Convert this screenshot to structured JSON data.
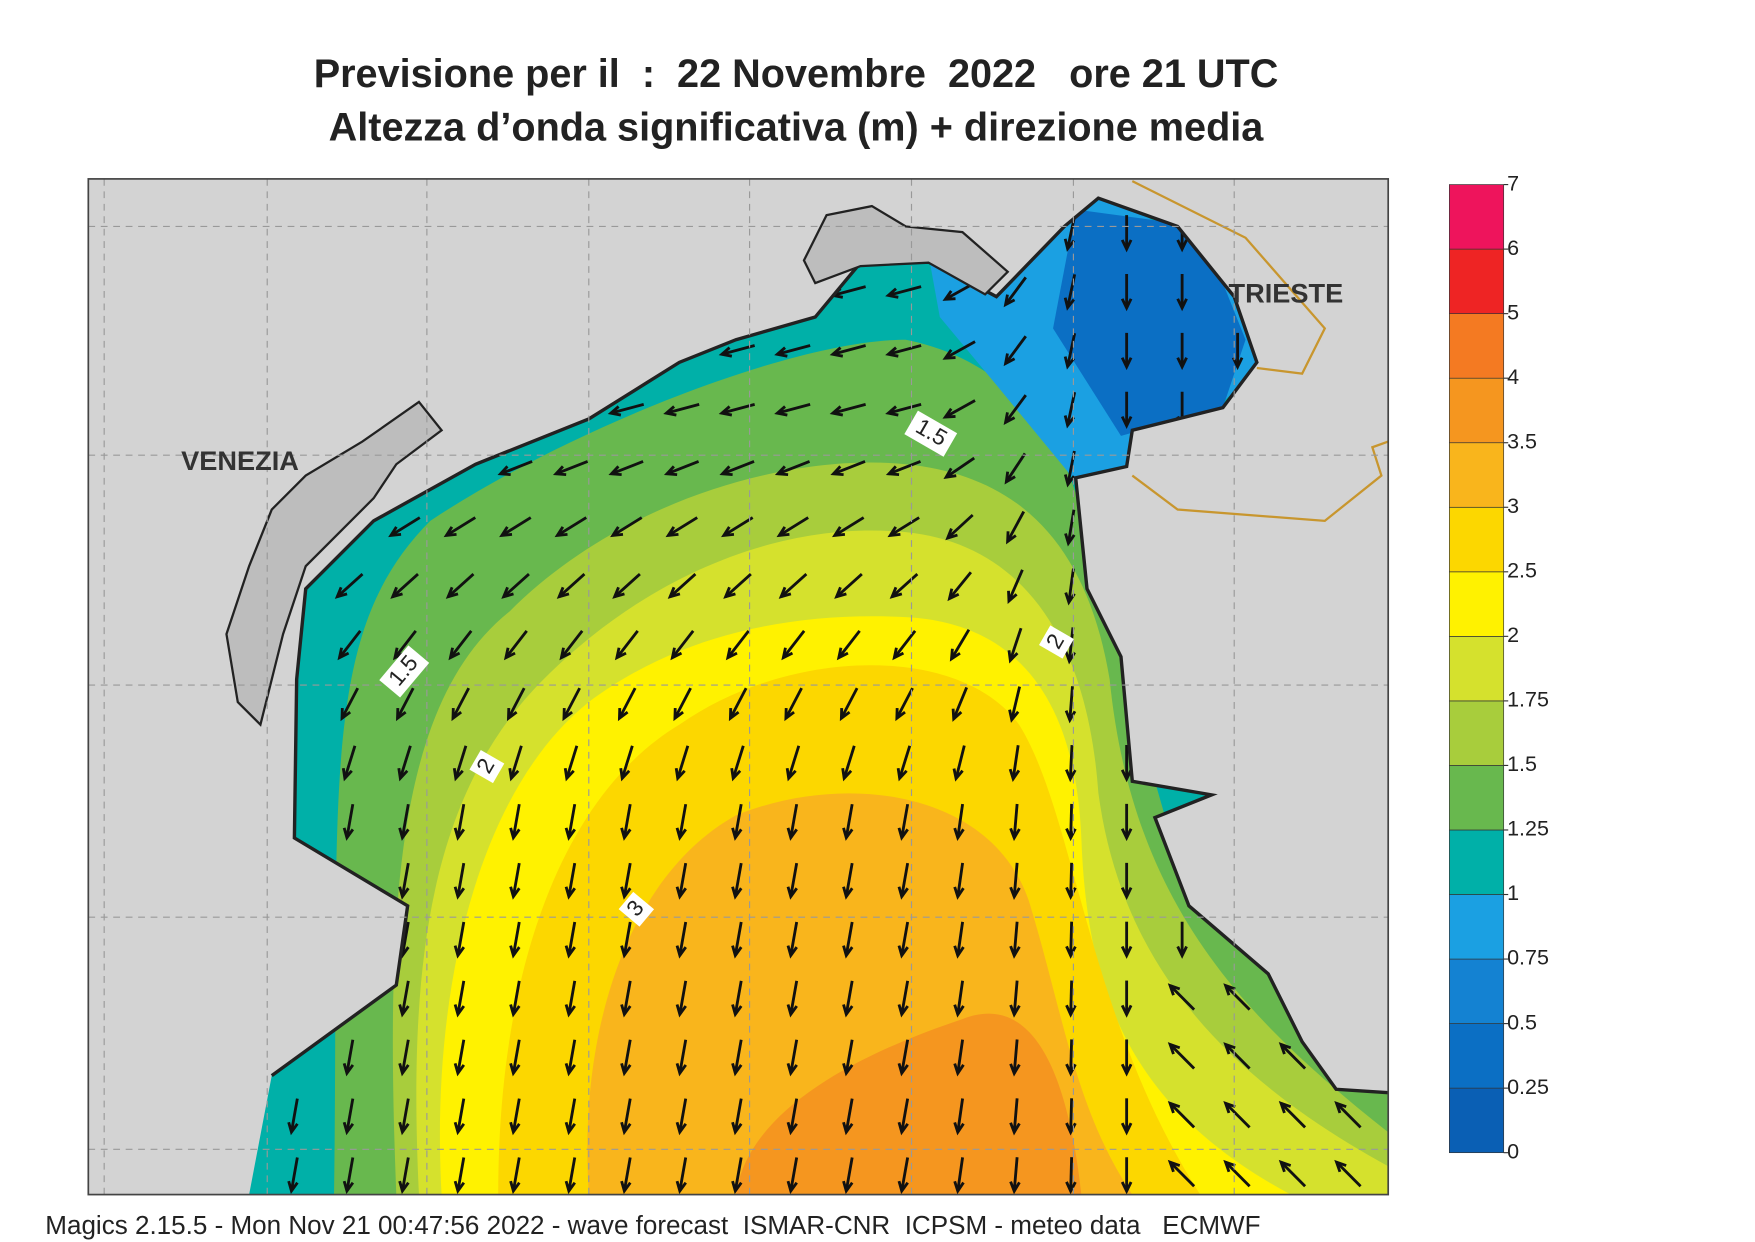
{
  "header": {
    "title_line1": "Previsione per il  :  22 Novembre  2022   ore 21 UTC",
    "title_line2": "Altezza d’onda significativa (m) + direzione media"
  },
  "map": {
    "place_labels": [
      "VENEZIA",
      "TRIESTE"
    ],
    "contour_labels": [
      1.5,
      1.5,
      2,
      2,
      3
    ]
  },
  "legend": {
    "levels": [
      0,
      0.25,
      0.5,
      0.75,
      1,
      1.25,
      1.5,
      1.75,
      2,
      2.5,
      3,
      3.5,
      4,
      5,
      6,
      7
    ],
    "colors": [
      "#0a5fb4",
      "#0b6fc4",
      "#1482d2",
      "#1ba0e2",
      "#00b0a8",
      "#68b84e",
      "#a8cd3c",
      "#d5e12d",
      "#fff200",
      "#fcd700",
      "#f9b51c",
      "#f5961f",
      "#f47a22",
      "#ee2424",
      "#ee145c"
    ]
  },
  "footer": "Magics 2.15.5 - Mon Nov 21 00:47:56 2022 - wave forecast  ISMAR-CNR  ICPSM - meteo data   ECMWF"
}
